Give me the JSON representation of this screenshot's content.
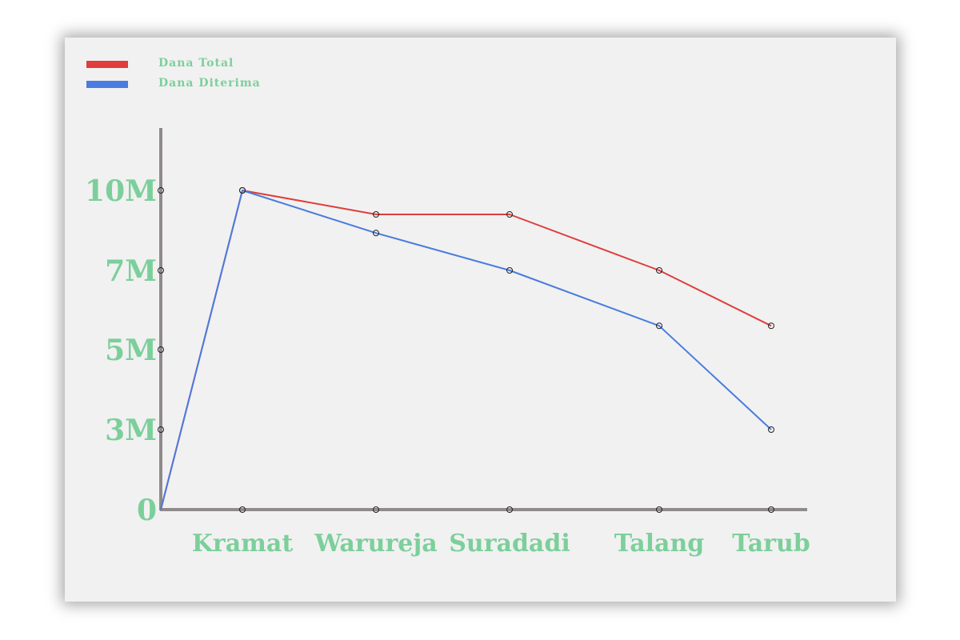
{
  "colors": {
    "text": "#7ccf9b",
    "axis": "#8f8b8b",
    "background": "#f1f1f1"
  },
  "chart_data": {
    "type": "line",
    "categories": [
      "",
      "Kramat",
      "Warureja",
      "Suradadi",
      "Talang",
      "Tarub"
    ],
    "x_tick_labels": [
      "Kramat",
      "Warureja",
      "Suradadi",
      "Talang",
      "Tarub"
    ],
    "y_ticks": [
      0,
      3000000,
      5000000,
      7000000,
      10000000
    ],
    "y_tick_labels": [
      "0",
      "3M",
      "5M",
      "7M",
      "10M"
    ],
    "ylim": [
      0,
      12000000
    ],
    "grid": false,
    "legend_position": "top-left",
    "series": [
      {
        "name": "Dana Total",
        "color": "#e03d3d",
        "values": [
          0,
          10000000,
          9100000,
          9100000,
          7000000,
          5600000
        ]
      },
      {
        "name": "Dana Diterima",
        "color": "#4a7be0",
        "values": [
          0,
          10000000,
          8400000,
          7000000,
          5600000,
          3000000
        ]
      }
    ]
  }
}
